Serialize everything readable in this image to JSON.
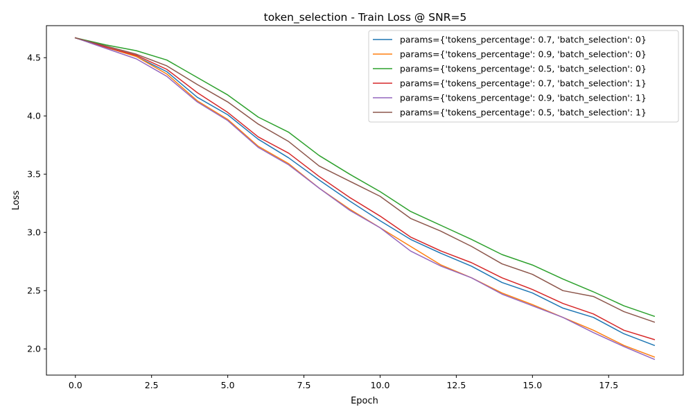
{
  "chart_data": {
    "type": "line",
    "title": "token_selection - Train Loss @ SNR=5",
    "xlabel": "Epoch",
    "ylabel": "Loss",
    "xlim": [
      -0.95,
      19.95
    ],
    "ylim": [
      1.775,
      4.775
    ],
    "xticks": [
      0.0,
      2.5,
      5.0,
      7.5,
      10.0,
      12.5,
      15.0,
      17.5
    ],
    "xtick_labels": [
      "0.0",
      "2.5",
      "5.0",
      "7.5",
      "10.0",
      "12.5",
      "15.0",
      "17.5"
    ],
    "yticks": [
      2.0,
      2.5,
      3.0,
      3.5,
      4.0,
      4.5
    ],
    "ytick_labels": [
      "2.0",
      "2.5",
      "3.0",
      "3.5",
      "4.0",
      "4.5"
    ],
    "grid": false,
    "legend_position": "top-right",
    "x": [
      0,
      1,
      2,
      3,
      4,
      5,
      6,
      7,
      8,
      9,
      10,
      11,
      12,
      13,
      14,
      15,
      16,
      17,
      18,
      19
    ],
    "series": [
      {
        "name": "params={'tokens_percentage': 0.7, 'batch_selection': 0}",
        "color": "#1f77b4",
        "values": [
          4.67,
          4.59,
          4.51,
          4.38,
          4.16,
          4.01,
          3.8,
          3.64,
          3.45,
          3.27,
          3.1,
          2.94,
          2.82,
          2.71,
          2.57,
          2.48,
          2.35,
          2.27,
          2.13,
          2.03
        ]
      },
      {
        "name": "params={'tokens_percentage': 0.9, 'batch_selection': 0}",
        "color": "#ff7f0e",
        "values": [
          4.67,
          4.59,
          4.51,
          4.36,
          4.13,
          3.97,
          3.74,
          3.59,
          3.38,
          3.2,
          3.04,
          2.88,
          2.72,
          2.61,
          2.48,
          2.38,
          2.27,
          2.16,
          2.03,
          1.93
        ]
      },
      {
        "name": "params={'tokens_percentage': 0.5, 'batch_selection': 0}",
        "color": "#2ca02c",
        "values": [
          4.67,
          4.61,
          4.56,
          4.48,
          4.33,
          4.18,
          3.99,
          3.86,
          3.66,
          3.5,
          3.35,
          3.18,
          3.06,
          2.94,
          2.81,
          2.72,
          2.6,
          2.49,
          2.37,
          2.28
        ]
      },
      {
        "name": "params={'tokens_percentage': 0.7, 'batch_selection': 1}",
        "color": "#d62728",
        "values": [
          4.67,
          4.59,
          4.52,
          4.4,
          4.2,
          4.03,
          3.82,
          3.68,
          3.48,
          3.3,
          3.14,
          2.96,
          2.84,
          2.74,
          2.61,
          2.51,
          2.39,
          2.3,
          2.16,
          2.08
        ]
      },
      {
        "name": "params={'tokens_percentage': 0.9, 'batch_selection': 1}",
        "color": "#9467bd",
        "values": [
          4.67,
          4.58,
          4.49,
          4.34,
          4.12,
          3.96,
          3.73,
          3.58,
          3.38,
          3.19,
          3.04,
          2.84,
          2.71,
          2.61,
          2.47,
          2.37,
          2.27,
          2.14,
          2.02,
          1.91
        ]
      },
      {
        "name": "params={'tokens_percentage': 0.5, 'batch_selection': 1}",
        "color": "#8c564b",
        "values": [
          4.67,
          4.6,
          4.53,
          4.43,
          4.27,
          4.12,
          3.93,
          3.78,
          3.57,
          3.44,
          3.31,
          3.12,
          3.01,
          2.88,
          2.73,
          2.64,
          2.5,
          2.45,
          2.32,
          2.23
        ]
      }
    ]
  }
}
